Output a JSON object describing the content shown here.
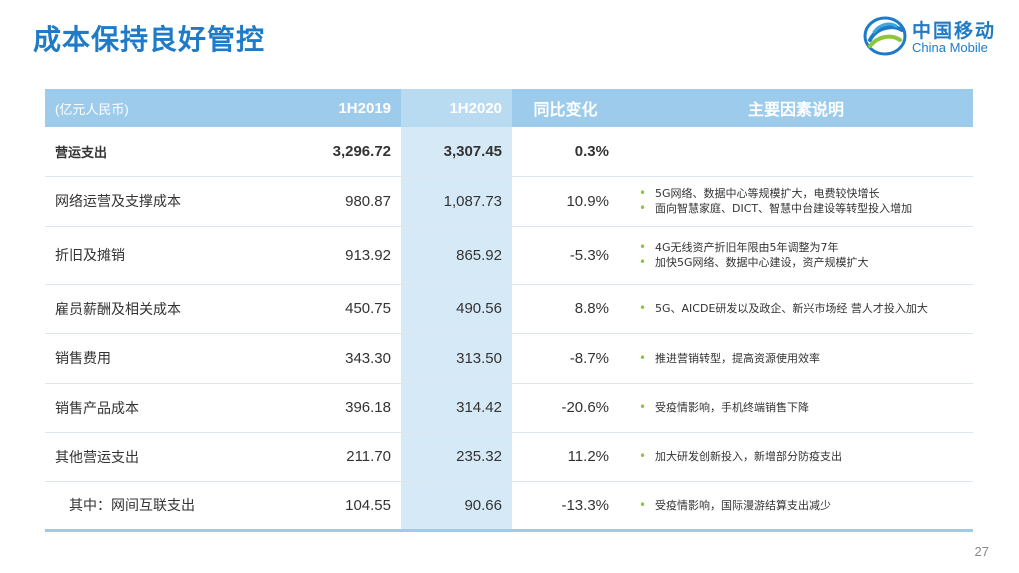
{
  "title": "成本保持良好管控",
  "logo": {
    "cn": "中国移动",
    "en": "China Mobile"
  },
  "colors": {
    "accent": "#1f7bc8",
    "header": "#9dcbec",
    "highlight": "#d6e9f7",
    "bullet": "#8cc63f"
  },
  "table": {
    "headers": {
      "unit": "(亿元人民币)",
      "y2019": "1H2019",
      "y2020": "1H2020",
      "change": "同比变化",
      "factors": "主要因素说明"
    },
    "rows": [
      {
        "label": "营运支出",
        "v2019": "3,296.72",
        "v2020": "3,307.45",
        "change": "0.3%",
        "notes": []
      },
      {
        "label": "网络运营及支撑成本",
        "v2019": "980.87",
        "v2020": "1,087.73",
        "change": "10.9%",
        "notes": [
          "5G网络、数据中心等规模扩大，电费较快增长",
          "面向智慧家庭、DICT、智慧中台建设等转型投入增加"
        ]
      },
      {
        "label": "折旧及摊销",
        "v2019": "913.92",
        "v2020": "865.92",
        "change": "-5.3%",
        "notes": [
          "4G无线资产折旧年限由5年调整为7年",
          "加快5G网络、数据中心建设，资产规模扩大"
        ]
      },
      {
        "label": "雇员薪酬及相关成本",
        "v2019": "450.75",
        "v2020": "490.56",
        "change": "8.8%",
        "notes": [
          "5G、AICDE研发以及政企、新兴市场经 营人才投入加大"
        ]
      },
      {
        "label": "销售费用",
        "v2019": "343.30",
        "v2020": "313.50",
        "change": "-8.7%",
        "notes": [
          "推进营销转型，提高资源使用效率"
        ]
      },
      {
        "label": "销售产品成本",
        "v2019": "396.18",
        "v2020": "314.42",
        "change": "-20.6%",
        "notes": [
          "受疫情影响，手机终端销售下降"
        ]
      },
      {
        "label": "其他营运支出",
        "v2019": "211.70",
        "v2020": "235.32",
        "change": "11.2%",
        "notes": [
          "加大研发创新投入，新增部分防疫支出"
        ]
      },
      {
        "label": "其中：网间互联支出",
        "v2019": "104.55",
        "v2020": "90.66",
        "change": "-13.3%",
        "notes": [
          "受疫情影响，国际漫游结算支出减少"
        ]
      }
    ]
  },
  "page_number": "27",
  "icons": {
    "logo": "china-mobile-logo-icon",
    "bullet": "bullet-dot-icon"
  }
}
